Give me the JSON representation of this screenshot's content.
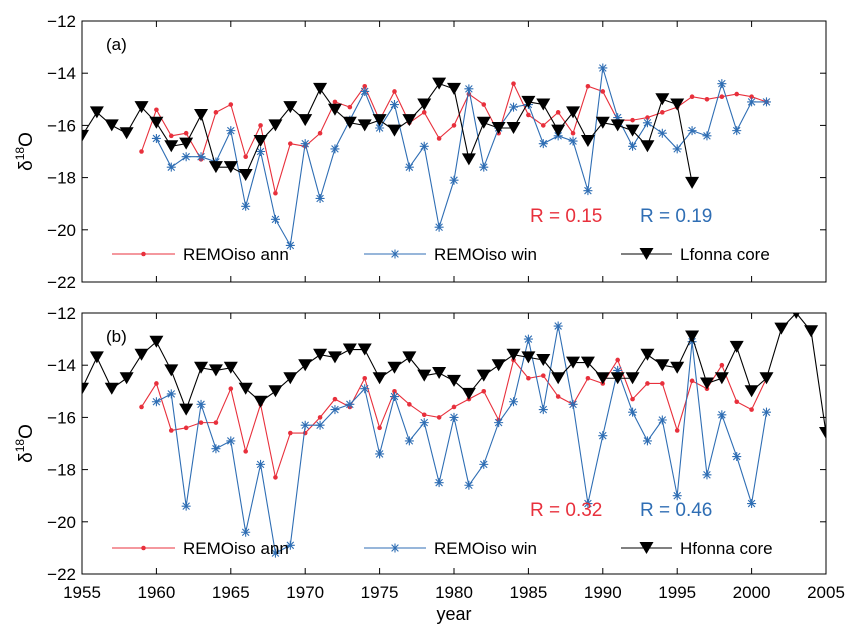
{
  "colors": {
    "annual": "#e8303c",
    "winter": "#2f6eb4",
    "core": "#000000",
    "axis": "#000000"
  },
  "x_axis": {
    "label": "year",
    "ticks": [
      "1955",
      "1960",
      "1965",
      "1970",
      "1975",
      "1980",
      "1985",
      "1990",
      "1995",
      "2000",
      "2005"
    ]
  },
  "chart_data": [
    {
      "type": "line",
      "panel_label": "(a)",
      "ylabel": "δ18O",
      "ylabel_main": "δ",
      "ylabel_sup": "18",
      "ylabel_tail": "O",
      "xlabel": "year",
      "xlim": [
        1955,
        2005
      ],
      "ylim": [
        -22,
        -12
      ],
      "yticks": [
        -22,
        -20,
        -18,
        -16,
        -14,
        -12
      ],
      "ytick_labels": [
        "−22",
        "−20",
        "−18",
        "−16",
        "−14",
        "−12"
      ],
      "annotations": [
        {
          "text": "R = 0.15",
          "color": "#e8303c"
        },
        {
          "text": "R = 0.19",
          "color": "#2f6eb4"
        }
      ],
      "legend": [
        "REMOiso ann",
        "REMOiso win",
        "Lfonna core"
      ],
      "series": [
        {
          "name": "REMOiso ann",
          "key": "annual",
          "marker": "dot",
          "x": [
            1959,
            1960,
            1961,
            1962,
            1963,
            1964,
            1965,
            1966,
            1967,
            1968,
            1969,
            1970,
            1971,
            1972,
            1973,
            1974,
            1975,
            1976,
            1977,
            1978,
            1979,
            1980,
            1981,
            1982,
            1983,
            1984,
            1985,
            1986,
            1987,
            1988,
            1989,
            1990,
            1991,
            1992,
            1993,
            1994,
            1995,
            1996,
            1997,
            1998,
            1999,
            2000,
            2001
          ],
          "y": [
            -17.0,
            -15.4,
            -16.4,
            -16.3,
            -17.3,
            -15.5,
            -15.2,
            -17.2,
            -16.0,
            -18.6,
            -16.7,
            -16.8,
            -16.3,
            -15.1,
            -15.3,
            -14.5,
            -15.8,
            -14.7,
            -15.9,
            -15.5,
            -16.5,
            -16.0,
            -14.8,
            -15.2,
            -16.3,
            -14.4,
            -15.6,
            -16.0,
            -15.5,
            -16.3,
            -14.5,
            -14.7,
            -15.8,
            -15.8,
            -15.7,
            -15.5,
            -15.3,
            -14.9,
            -15.0,
            -14.9,
            -14.8,
            -14.9,
            -15.1
          ]
        },
        {
          "name": "REMOiso win",
          "key": "winter",
          "marker": "star",
          "x": [
            1960,
            1961,
            1962,
            1963,
            1964,
            1965,
            1966,
            1967,
            1968,
            1969,
            1970,
            1971,
            1972,
            1973,
            1974,
            1975,
            1976,
            1977,
            1978,
            1979,
            1980,
            1981,
            1982,
            1983,
            1984,
            1985,
            1986,
            1987,
            1988,
            1989,
            1990,
            1991,
            1992,
            1993,
            1994,
            1995,
            1996,
            1997,
            1998,
            1999,
            2000,
            2001
          ],
          "y": [
            -16.5,
            -17.6,
            -17.2,
            -17.2,
            -17.4,
            -16.2,
            -19.1,
            -17.0,
            -19.6,
            -20.6,
            -16.7,
            -18.8,
            -16.9,
            -15.8,
            -14.7,
            -16.1,
            -15.2,
            -17.6,
            -16.8,
            -19.9,
            -18.1,
            -14.6,
            -17.6,
            -16.1,
            -15.3,
            -15.2,
            -16.7,
            -16.4,
            -16.6,
            -18.5,
            -13.8,
            -15.7,
            -16.8,
            -15.9,
            -16.3,
            -16.9,
            -16.2,
            -16.4,
            -14.4,
            -16.2,
            -15.1,
            -15.1
          ]
        },
        {
          "name": "Lfonna core",
          "key": "core",
          "marker": "triangle",
          "x": [
            1955,
            1956,
            1957,
            1958,
            1959,
            1960,
            1961,
            1962,
            1963,
            1964,
            1965,
            1966,
            1967,
            1968,
            1969,
            1970,
            1971,
            1972,
            1973,
            1974,
            1975,
            1976,
            1977,
            1978,
            1979,
            1980,
            1981,
            1982,
            1983,
            1984,
            1985,
            1986,
            1987,
            1988,
            1989,
            1990,
            1991,
            1992,
            1993,
            1994,
            1995,
            1996
          ],
          "y": [
            -16.4,
            -15.5,
            -16.0,
            -16.3,
            -15.3,
            -15.9,
            -16.8,
            -16.7,
            -15.6,
            -17.6,
            -17.6,
            -17.9,
            -16.6,
            -16.0,
            -15.3,
            -15.8,
            -14.6,
            -15.4,
            -15.9,
            -16.0,
            -15.8,
            -16.2,
            -15.8,
            -15.2,
            -14.4,
            -14.6,
            -17.3,
            -15.9,
            -16.1,
            -16.1,
            -15.1,
            -15.2,
            -16.2,
            -15.5,
            -16.6,
            -15.9,
            -16.0,
            -16.2,
            -16.8,
            -15.0,
            -15.2,
            -18.2
          ]
        }
      ]
    },
    {
      "type": "line",
      "panel_label": "(b)",
      "ylabel": "δ18O",
      "ylabel_main": "δ",
      "ylabel_sup": "18",
      "ylabel_tail": "O",
      "xlabel": "year",
      "xlim": [
        1955,
        2005
      ],
      "ylim": [
        -22,
        -12
      ],
      "yticks": [
        -22,
        -20,
        -18,
        -16,
        -14,
        -12
      ],
      "ytick_labels": [
        "−22",
        "−20",
        "−18",
        "−16",
        "−14",
        "−12"
      ],
      "annotations": [
        {
          "text": "R = 0.32",
          "color": "#e8303c"
        },
        {
          "text": "R = 0.46",
          "color": "#2f6eb4"
        }
      ],
      "legend": [
        "REMOiso ann",
        "REMOiso win",
        "Hfonna core"
      ],
      "series": [
        {
          "name": "REMOiso ann",
          "key": "annual",
          "marker": "dot",
          "x": [
            1959,
            1960,
            1961,
            1962,
            1963,
            1964,
            1965,
            1966,
            1967,
            1968,
            1969,
            1970,
            1971,
            1972,
            1973,
            1974,
            1975,
            1976,
            1977,
            1978,
            1979,
            1980,
            1981,
            1982,
            1983,
            1984,
            1985,
            1986,
            1987,
            1988,
            1989,
            1990,
            1991,
            1992,
            1993,
            1994,
            1995,
            1996,
            1997,
            1998,
            1999,
            2000,
            2001
          ],
          "y": [
            -15.6,
            -14.7,
            -16.5,
            -16.4,
            -16.2,
            -16.2,
            -14.9,
            -17.3,
            -15.5,
            -18.3,
            -16.6,
            -16.6,
            -16.0,
            -15.3,
            -15.6,
            -14.5,
            -16.4,
            -15.0,
            -15.5,
            -15.9,
            -16.0,
            -15.6,
            -15.3,
            -15.0,
            -16.1,
            -13.8,
            -14.5,
            -14.4,
            -15.2,
            -15.5,
            -14.5,
            -14.7,
            -13.8,
            -15.3,
            -14.7,
            -14.7,
            -16.5,
            -14.6,
            -14.9,
            -14.0,
            -15.4,
            -15.7,
            -14.5
          ]
        },
        {
          "name": "REMOiso win",
          "key": "winter",
          "marker": "star",
          "x": [
            1960,
            1961,
            1962,
            1963,
            1964,
            1965,
            1966,
            1967,
            1968,
            1969,
            1970,
            1971,
            1972,
            1973,
            1974,
            1975,
            1976,
            1977,
            1978,
            1979,
            1980,
            1981,
            1982,
            1983,
            1984,
            1985,
            1986,
            1987,
            1988,
            1989,
            1990,
            1991,
            1992,
            1993,
            1994,
            1995,
            1996,
            1997,
            1998,
            1999,
            2000,
            2001
          ],
          "y": [
            -15.4,
            -15.1,
            -19.4,
            -15.5,
            -17.2,
            -16.9,
            -20.4,
            -17.8,
            -21.2,
            -20.9,
            -16.3,
            -16.3,
            -15.7,
            -15.5,
            -14.9,
            -17.4,
            -15.2,
            -16.9,
            -16.2,
            -18.5,
            -16.0,
            -18.6,
            -17.8,
            -16.2,
            -15.4,
            -13.0,
            -15.7,
            -12.5,
            -15.5,
            -19.3,
            -16.7,
            -14.2,
            -15.8,
            -16.9,
            -16.1,
            -19.0,
            -13.1,
            -18.2,
            -15.9,
            -17.5,
            -19.3,
            -15.8
          ]
        },
        {
          "name": "Hfonna core",
          "key": "core",
          "marker": "triangle",
          "x": [
            1955,
            1956,
            1957,
            1958,
            1959,
            1960,
            1961,
            1962,
            1963,
            1964,
            1965,
            1966,
            1967,
            1968,
            1969,
            1970,
            1971,
            1972,
            1973,
            1974,
            1975,
            1976,
            1977,
            1978,
            1979,
            1980,
            1981,
            1982,
            1983,
            1984,
            1985,
            1986,
            1987,
            1988,
            1989,
            1990,
            1991,
            1992,
            1993,
            1994,
            1995,
            1996,
            1997,
            1998,
            1999,
            2000,
            2001,
            2002,
            2003,
            2004,
            2005
          ],
          "y": [
            -14.9,
            -13.7,
            -14.9,
            -14.5,
            -13.6,
            -13.1,
            -14.2,
            -15.7,
            -14.1,
            -14.2,
            -14.1,
            -14.9,
            -15.4,
            -15.0,
            -14.5,
            -14.0,
            -13.6,
            -13.7,
            -13.4,
            -13.4,
            -14.5,
            -14.1,
            -13.7,
            -14.4,
            -14.3,
            -14.6,
            -15.1,
            -14.4,
            -14.0,
            -13.6,
            -13.7,
            -13.8,
            -14.5,
            -13.9,
            -13.9,
            -14.5,
            -14.5,
            -14.5,
            -13.6,
            -14.0,
            -14.1,
            -12.9,
            -14.7,
            -14.5,
            -13.3,
            -15.0,
            -14.5,
            -12.6,
            -12.0,
            -12.7,
            -16.6
          ]
        }
      ]
    }
  ]
}
